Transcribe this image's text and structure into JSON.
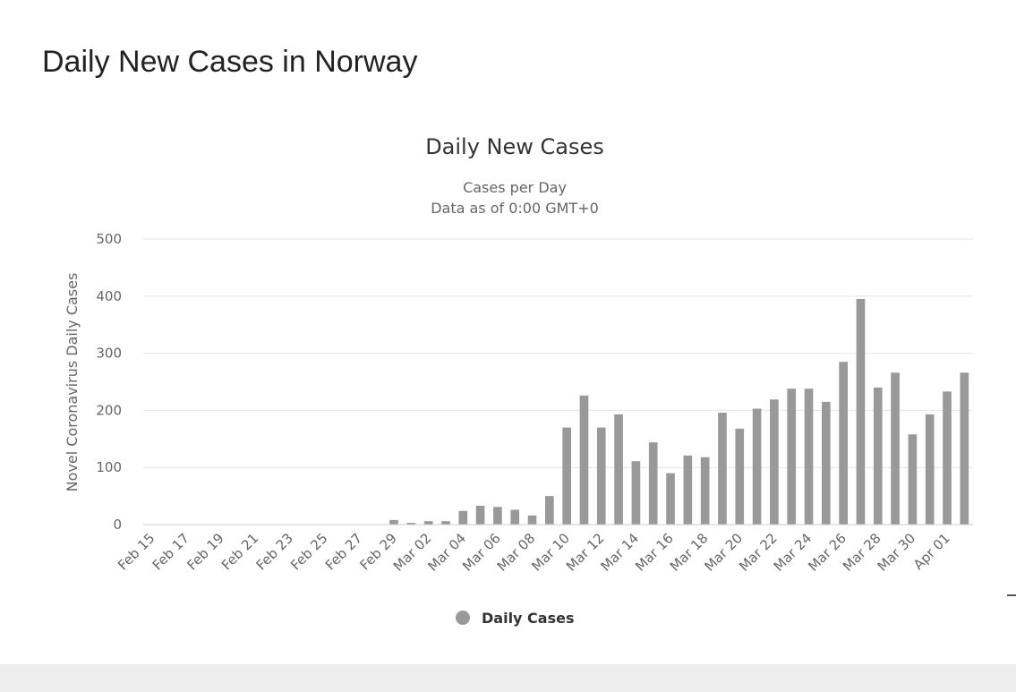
{
  "page": {
    "title": "Daily New Cases in Norway"
  },
  "chart_data": {
    "type": "bar",
    "title": "Daily New Cases",
    "subtitle_lines": [
      "Cases per Day",
      "Data as of 0:00 GMT+0"
    ],
    "xlabel": "",
    "ylabel": "Novel Coronavirus Daily Cases",
    "ylim": [
      0,
      500
    ],
    "yticks": [
      0,
      100,
      200,
      300,
      400,
      500
    ],
    "grid": true,
    "legend_position": "bottom-center",
    "bar_color": "#999999",
    "x_tick_labels": [
      "Feb 15",
      "Feb 17",
      "Feb 19",
      "Feb 21",
      "Feb 23",
      "Feb 25",
      "Feb 27",
      "Feb 29",
      "Mar 02",
      "Mar 04",
      "Mar 06",
      "Mar 08",
      "Mar 10",
      "Mar 12",
      "Mar 14",
      "Mar 16",
      "Mar 18",
      "Mar 20",
      "Mar 22",
      "Mar 24",
      "Mar 26",
      "Mar 28",
      "Mar 30",
      "Apr 01"
    ],
    "categories": [
      "Feb 15",
      "Feb 16",
      "Feb 17",
      "Feb 18",
      "Feb 19",
      "Feb 20",
      "Feb 21",
      "Feb 22",
      "Feb 23",
      "Feb 24",
      "Feb 25",
      "Feb 26",
      "Feb 27",
      "Feb 28",
      "Feb 29",
      "Mar 01",
      "Mar 02",
      "Mar 03",
      "Mar 04",
      "Mar 05",
      "Mar 06",
      "Mar 07",
      "Mar 08",
      "Mar 09",
      "Mar 10",
      "Mar 11",
      "Mar 12",
      "Mar 13",
      "Mar 14",
      "Mar 15",
      "Mar 16",
      "Mar 17",
      "Mar 18",
      "Mar 19",
      "Mar 20",
      "Mar 21",
      "Mar 22",
      "Mar 23",
      "Mar 24",
      "Mar 25",
      "Mar 26",
      "Mar 27",
      "Mar 28",
      "Mar 29",
      "Mar 30",
      "Mar 31",
      "Apr 01",
      "Apr 02"
    ],
    "series": [
      {
        "name": "Daily Cases",
        "values": [
          0,
          0,
          0,
          0,
          0,
          0,
          0,
          0,
          0,
          0,
          0,
          0,
          0,
          0,
          8,
          3,
          6,
          6,
          24,
          33,
          31,
          26,
          16,
          50,
          170,
          226,
          170,
          193,
          111,
          144,
          90,
          121,
          118,
          196,
          168,
          203,
          219,
          238,
          238,
          215,
          285,
          395,
          240,
          266,
          158,
          193,
          233,
          266
        ]
      }
    ]
  }
}
